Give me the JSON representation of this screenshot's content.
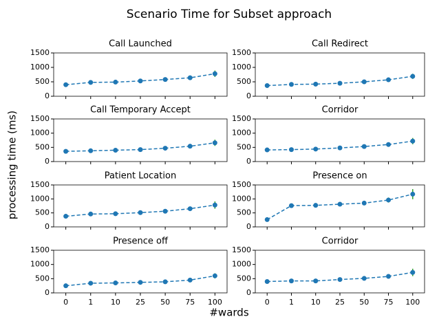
{
  "title": "Scenario Time for Subset approach",
  "xlabel": "#wards",
  "ylabel": "processing time (ms)",
  "chart_data": [
    {
      "type": "line",
      "title": "Call Launched",
      "categories": [
        "0",
        "1",
        "10",
        "25",
        "50",
        "75",
        "100"
      ],
      "values": [
        400,
        480,
        490,
        530,
        580,
        640,
        780
      ],
      "errors": [
        20,
        20,
        20,
        30,
        40,
        80,
        110
      ],
      "color": "#1f77b4",
      "error_color": "#2ca02c",
      "ylim": [
        0,
        1500
      ],
      "yticks": [
        0,
        500,
        1000,
        1500
      ]
    },
    {
      "type": "line",
      "title": "Call Redirect",
      "categories": [
        "0",
        "1",
        "10",
        "25",
        "50",
        "75",
        "100"
      ],
      "values": [
        370,
        410,
        420,
        450,
        500,
        570,
        690
      ],
      "errors": [
        20,
        20,
        20,
        30,
        30,
        50,
        90
      ],
      "color": "#1f77b4",
      "error_color": "#2ca02c",
      "ylim": [
        0,
        1500
      ],
      "yticks": [
        0,
        500,
        1000,
        1500
      ]
    },
    {
      "type": "line",
      "title": "Call Temporary Accept",
      "categories": [
        "0",
        "1",
        "10",
        "25",
        "50",
        "75",
        "100"
      ],
      "values": [
        360,
        380,
        400,
        420,
        470,
        540,
        660
      ],
      "errors": [
        20,
        20,
        20,
        30,
        40,
        60,
        110
      ],
      "color": "#1f77b4",
      "error_color": "#2ca02c",
      "ylim": [
        0,
        1500
      ],
      "yticks": [
        0,
        500,
        1000,
        1500
      ]
    },
    {
      "type": "line",
      "title": "Corridor",
      "categories": [
        "0",
        "1",
        "10",
        "25",
        "50",
        "75",
        "100"
      ],
      "values": [
        410,
        420,
        440,
        480,
        530,
        600,
        720
      ],
      "errors": [
        20,
        20,
        20,
        30,
        40,
        50,
        110
      ],
      "color": "#1f77b4",
      "error_color": "#2ca02c",
      "ylim": [
        0,
        1500
      ],
      "yticks": [
        0,
        500,
        1000,
        1500
      ]
    },
    {
      "type": "line",
      "title": "Patient Location",
      "categories": [
        "0",
        "1",
        "10",
        "25",
        "50",
        "75",
        "100"
      ],
      "values": [
        380,
        460,
        470,
        510,
        560,
        650,
        780
      ],
      "errors": [
        20,
        20,
        30,
        30,
        40,
        60,
        130
      ],
      "color": "#1f77b4",
      "error_color": "#2ca02c",
      "ylim": [
        0,
        1500
      ],
      "yticks": [
        0,
        500,
        1000,
        1500
      ]
    },
    {
      "type": "line",
      "title": "Presence on",
      "categories": [
        "0",
        "1",
        "10",
        "25",
        "50",
        "75",
        "100"
      ],
      "values": [
        260,
        760,
        770,
        810,
        850,
        960,
        1170
      ],
      "errors": [
        20,
        30,
        30,
        40,
        40,
        90,
        180
      ],
      "color": "#1f77b4",
      "error_color": "#2ca02c",
      "ylim": [
        0,
        1500
      ],
      "yticks": [
        0,
        500,
        1000,
        1500
      ]
    },
    {
      "type": "line",
      "title": "Presence off",
      "categories": [
        "0",
        "1",
        "10",
        "25",
        "50",
        "75",
        "100"
      ],
      "values": [
        250,
        340,
        350,
        370,
        390,
        450,
        600
      ],
      "errors": [
        20,
        20,
        20,
        20,
        30,
        50,
        90
      ],
      "color": "#1f77b4",
      "error_color": "#2ca02c",
      "ylim": [
        0,
        1500
      ],
      "yticks": [
        0,
        500,
        1000,
        1500
      ]
    },
    {
      "type": "line",
      "title": "Corridor",
      "categories": [
        "0",
        "1",
        "10",
        "25",
        "50",
        "75",
        "100"
      ],
      "values": [
        400,
        420,
        420,
        470,
        510,
        580,
        720
      ],
      "errors": [
        20,
        20,
        20,
        30,
        40,
        60,
        130
      ],
      "color": "#1f77b4",
      "error_color": "#2ca02c",
      "ylim": [
        0,
        1500
      ],
      "yticks": [
        0,
        500,
        1000,
        1500
      ]
    }
  ]
}
